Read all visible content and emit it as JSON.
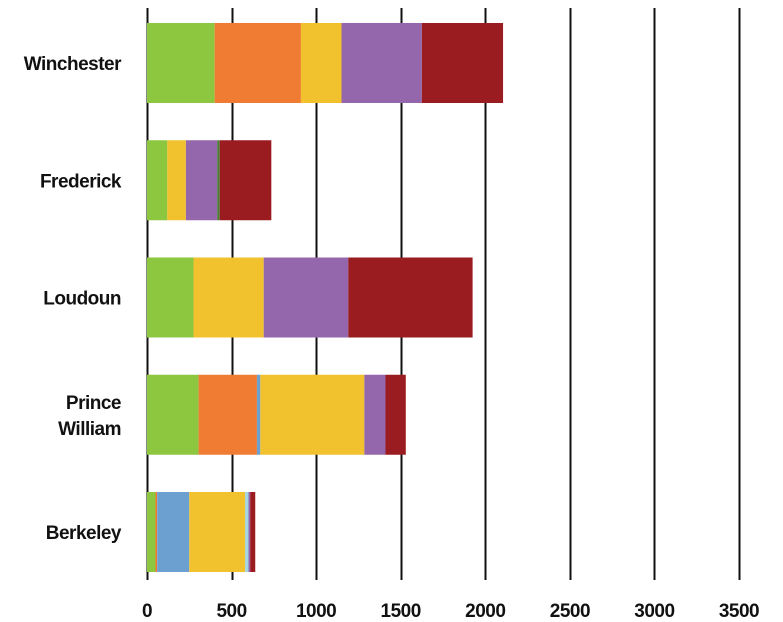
{
  "chart_data": {
    "type": "bar",
    "orientation": "horizontal",
    "stacked": true,
    "categories": [
      "Winchester",
      "Frederick",
      "Loudoun",
      "Prince William",
      "Berkeley"
    ],
    "category_lines": [
      [
        "Winchester"
      ],
      [
        "Frederick"
      ],
      [
        "Loudoun"
      ],
      [
        "Prince",
        "William"
      ],
      [
        "Berkeley"
      ]
    ],
    "series": [
      {
        "color": "#8dc63f",
        "values": [
          400,
          120,
          275,
          305,
          50
        ]
      },
      {
        "color": "#f07b33",
        "values": [
          510,
          0,
          0,
          345,
          10
        ]
      },
      {
        "color": "#6ca0d0",
        "values": [
          0,
          0,
          0,
          20,
          190
        ]
      },
      {
        "color": "#f2c12e",
        "values": [
          240,
          110,
          415,
          615,
          330
        ]
      },
      {
        "color": "#a3d6e0",
        "values": [
          0,
          0,
          0,
          0,
          20
        ]
      },
      {
        "color": "#9467ad",
        "values": [
          475,
          185,
          500,
          125,
          10
        ]
      },
      {
        "color": "#4e7a3a",
        "values": [
          0,
          15,
          0,
          0,
          0
        ]
      },
      {
        "color": "#9b1c20",
        "values": [
          480,
          305,
          735,
          120,
          30
        ]
      }
    ],
    "xlim": [
      0,
      3500
    ],
    "xticks": [
      0,
      500,
      1000,
      1500,
      2000,
      2500,
      3000,
      3500
    ],
    "xtick_labels": [
      "0",
      "500",
      "1000",
      "1500",
      "2000",
      "2500",
      "3000",
      "3500"
    ],
    "grid": true,
    "title": "",
    "xlabel": "",
    "ylabel": ""
  }
}
